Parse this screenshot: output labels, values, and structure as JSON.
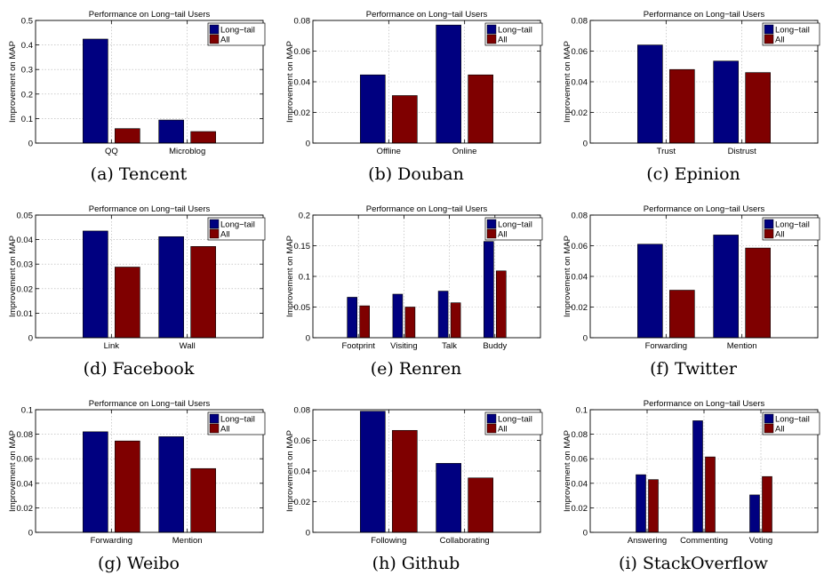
{
  "figure": {
    "series_colors": {
      "long_tail": "#000080",
      "all": "#7f0000"
    }
  },
  "chart_data": [
    {
      "type": "bar",
      "caption": "(a) Tencent",
      "title": "Performance on Long−tail Users",
      "ylabel": "Improvement on MAP",
      "xlabel": "",
      "ylim": [
        0,
        0.5
      ],
      "yticks": [
        "0",
        "0.1",
        "0.2",
        "0.3",
        "0.4",
        "0.5"
      ],
      "grid": true,
      "legend": "top-right",
      "categories": [
        "QQ",
        "Microblog"
      ],
      "series": [
        {
          "name": "Long−tail",
          "values": [
            0.424,
            0.094
          ]
        },
        {
          "name": "All",
          "values": [
            0.059,
            0.047
          ]
        }
      ]
    },
    {
      "type": "bar",
      "caption": "(b) Douban",
      "title": "Performance on Long−tail Users",
      "ylabel": "Improvement on MAP",
      "xlabel": "",
      "ylim": [
        0,
        0.08
      ],
      "yticks": [
        "0",
        "0.02",
        "0.04",
        "0.06",
        "0.08"
      ],
      "grid": true,
      "legend": "top-right",
      "categories": [
        "Offline",
        "Online"
      ],
      "series": [
        {
          "name": "Long−tail",
          "values": [
            0.0445,
            0.077
          ]
        },
        {
          "name": "All",
          "values": [
            0.031,
            0.0445
          ]
        }
      ]
    },
    {
      "type": "bar",
      "caption": "(c) Epinion",
      "title": "Performance on Long−tail Users",
      "ylabel": "Improvement on MAP",
      "xlabel": "",
      "ylim": [
        0,
        0.08
      ],
      "yticks": [
        "0",
        "0.02",
        "0.04",
        "0.06",
        "0.08"
      ],
      "grid": true,
      "legend": "top-right",
      "categories": [
        "Trust",
        "Distrust"
      ],
      "series": [
        {
          "name": "Long−tail",
          "values": [
            0.064,
            0.0535
          ]
        },
        {
          "name": "All",
          "values": [
            0.048,
            0.046
          ]
        }
      ]
    },
    {
      "type": "bar",
      "caption": "(d) Facebook",
      "title": "Performance on Long−tail Users",
      "ylabel": "Improvement on MAP",
      "xlabel": "",
      "ylim": [
        0,
        0.05
      ],
      "yticks": [
        "0",
        "0.01",
        "0.02",
        "0.03",
        "0.04",
        "0.05"
      ],
      "grid": true,
      "legend": "top-right",
      "categories": [
        "Link",
        "Wall"
      ],
      "series": [
        {
          "name": "Long−tail",
          "values": [
            0.0435,
            0.0412
          ]
        },
        {
          "name": "All",
          "values": [
            0.0288,
            0.0372
          ]
        }
      ]
    },
    {
      "type": "bar",
      "caption": "(e) Renren",
      "title": "Performance on Long−tail Users",
      "ylabel": "Improvement on MAP",
      "xlabel": "",
      "ylim": [
        0,
        0.2
      ],
      "yticks": [
        "0",
        "0.05",
        "0.1",
        "0.15",
        "0.2"
      ],
      "grid": true,
      "legend": "top-right",
      "categories": [
        "Footprint",
        "Visiting",
        "Talk",
        "Buddy"
      ],
      "series": [
        {
          "name": "Long−tail",
          "values": [
            0.066,
            0.071,
            0.076,
            0.157
          ]
        },
        {
          "name": "All",
          "values": [
            0.052,
            0.05,
            0.057,
            0.109
          ]
        }
      ]
    },
    {
      "type": "bar",
      "caption": "(f) Twitter",
      "title": "Performance on Long−tail Users",
      "ylabel": "Improvement on MAP",
      "xlabel": "",
      "ylim": [
        0,
        0.08
      ],
      "yticks": [
        "0",
        "0.02",
        "0.04",
        "0.06",
        "0.08"
      ],
      "grid": true,
      "legend": "top-right",
      "categories": [
        "Forwarding",
        "Mention"
      ],
      "series": [
        {
          "name": "Long−tail",
          "values": [
            0.061,
            0.067
          ]
        },
        {
          "name": "All",
          "values": [
            0.031,
            0.0585
          ]
        }
      ]
    },
    {
      "type": "bar",
      "caption": "(g) Weibo",
      "title": "Performance on Long−tail Users",
      "ylabel": "Improvement on MAP",
      "xlabel": "",
      "ylim": [
        0,
        0.1
      ],
      "yticks": [
        "0",
        "0.02",
        "0.04",
        "0.06",
        "0.08",
        "0.1"
      ],
      "grid": true,
      "legend": "top-right",
      "categories": [
        "Forwarding",
        "Mention"
      ],
      "series": [
        {
          "name": "Long−tail",
          "values": [
            0.082,
            0.078
          ]
        },
        {
          "name": "All",
          "values": [
            0.0745,
            0.052
          ]
        }
      ]
    },
    {
      "type": "bar",
      "caption": "(h) Github",
      "title": "",
      "ylabel": "Improvement on MAP",
      "xlabel": "",
      "ylim": [
        0,
        0.08
      ],
      "yticks": [
        "0",
        "0.02",
        "0.04",
        "0.06",
        "0.08"
      ],
      "grid": true,
      "legend": "top-right",
      "categories": [
        "Following",
        "Collaborating"
      ],
      "series": [
        {
          "name": "Long−tail",
          "values": [
            0.079,
            0.045
          ]
        },
        {
          "name": "All",
          "values": [
            0.0665,
            0.0355
          ]
        }
      ]
    },
    {
      "type": "bar",
      "caption": "(i) StackOverflow",
      "title": "Performance on Long−tail Users",
      "ylabel": "Improvement on MAP",
      "xlabel": "",
      "ylim": [
        0,
        0.1
      ],
      "yticks": [
        "0",
        "0.02",
        "0.04",
        "0.06",
        "0.08",
        "0.1"
      ],
      "grid": true,
      "legend": "top-right",
      "categories": [
        "Answering",
        "Commenting",
        "Voting"
      ],
      "series": [
        {
          "name": "Long−tail",
          "values": [
            0.047,
            0.091,
            0.0305
          ]
        },
        {
          "name": "All",
          "values": [
            0.043,
            0.0615,
            0.0455
          ]
        }
      ]
    }
  ]
}
